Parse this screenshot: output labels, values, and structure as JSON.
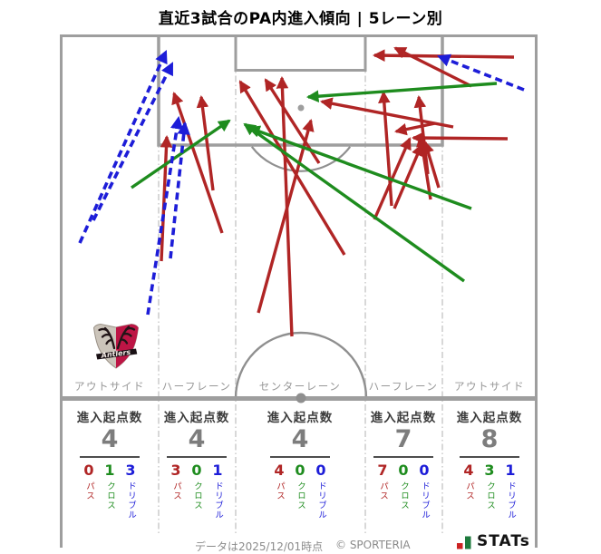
{
  "title": "直近3試合のPA内進入傾向 | 5レーン別",
  "stat_label": "進入起点数",
  "legend": {
    "pass": "パス",
    "cross": "クロス",
    "dribble": "ドリブル"
  },
  "colors": {
    "pass": "#b02525",
    "cross": "#1e8c1e",
    "dribble": "#1d1dd8",
    "pitch_line": "#9e9e9e",
    "lane_line": "#c2c2c2",
    "label_gray": "#979797"
  },
  "lanes": [
    {
      "label": "アウトサイド",
      "total": 4,
      "pass": 0,
      "cross": 1,
      "dribble": 3
    },
    {
      "label": "ハーフレーン",
      "total": 4,
      "pass": 3,
      "cross": 0,
      "dribble": 1
    },
    {
      "label": "センターレーン",
      "total": 4,
      "pass": 4,
      "cross": 0,
      "dribble": 0
    },
    {
      "label": "ハーフレーン",
      "total": 7,
      "pass": 7,
      "cross": 0,
      "dribble": 0
    },
    {
      "label": "アウトサイド",
      "total": 8,
      "pass": 4,
      "cross": 3,
      "dribble": 1
    }
  ],
  "footer": {
    "data_note": "データは2025/12/01時点",
    "copyright": "© SPORTERIA",
    "logo_text": "STATs"
  },
  "crest_text": "Antlers",
  "chart_data": {
    "type": "table",
    "title": "直近3試合のPA内進入傾向 | 5レーン別",
    "categories": [
      "アウトサイド",
      "ハーフレーン",
      "センターレーン",
      "ハーフレーン",
      "アウトサイド"
    ],
    "series": [
      {
        "name": "進入起点数",
        "values": [
          4,
          4,
          4,
          7,
          8
        ]
      },
      {
        "name": "パス",
        "values": [
          0,
          3,
          4,
          7,
          4
        ]
      },
      {
        "name": "クロス",
        "values": [
          1,
          0,
          0,
          0,
          3
        ]
      },
      {
        "name": "ドリブル",
        "values": [
          3,
          1,
          0,
          0,
          1
        ]
      }
    ],
    "arrows": [
      {
        "type": "pass",
        "from": [
          245,
          257
        ],
        "to": [
          192,
          103
        ]
      },
      {
        "type": "pass",
        "from": [
          178,
          288
        ],
        "to": [
          184,
          151
        ]
      },
      {
        "type": "pass",
        "from": [
          235,
          210
        ],
        "to": [
          222,
          107
        ]
      },
      {
        "type": "pass",
        "from": [
          322,
          371
        ],
        "to": [
          311,
          86
        ]
      },
      {
        "type": "pass",
        "from": [
          380,
          281
        ],
        "to": [
          265,
          90
        ]
      },
      {
        "type": "pass",
        "from": [
          352,
          180
        ],
        "to": [
          293,
          88
        ]
      },
      {
        "type": "pass",
        "from": [
          285,
          345
        ],
        "to": [
          343,
          133
        ]
      },
      {
        "type": "pass",
        "from": [
          432,
          227
        ],
        "to": [
          423,
          102
        ]
      },
      {
        "type": "pass",
        "from": [
          472,
          192
        ],
        "to": [
          462,
          107
        ]
      },
      {
        "type": "pass",
        "from": [
          413,
          242
        ],
        "to": [
          452,
          153
        ]
      },
      {
        "type": "pass",
        "from": [
          435,
          230
        ],
        "to": [
          465,
          160
        ]
      },
      {
        "type": "pass",
        "from": [
          475,
          220
        ],
        "to": [
          464,
          150
        ]
      },
      {
        "type": "pass",
        "from": [
          484,
          207
        ],
        "to": [
          469,
          157
        ]
      },
      {
        "type": "pass",
        "from": [
          480,
          136
        ],
        "to": [
          437,
          145
        ]
      },
      {
        "type": "pass",
        "from": [
          567,
          63
        ],
        "to": [
          413,
          61
        ]
      },
      {
        "type": "pass",
        "from": [
          560,
          153
        ],
        "to": [
          456,
          152
        ]
      },
      {
        "type": "pass",
        "from": [
          520,
          95
        ],
        "to": [
          436,
          53
        ]
      },
      {
        "type": "pass",
        "from": [
          500,
          140
        ],
        "to": [
          355,
          112
        ]
      },
      {
        "type": "cross",
        "from": [
          145,
          207
        ],
        "to": [
          253,
          133
        ]
      },
      {
        "type": "cross",
        "from": [
          548,
          92
        ],
        "to": [
          340,
          107
        ]
      },
      {
        "type": "cross",
        "from": [
          512,
          310
        ],
        "to": [
          270,
          137
        ]
      },
      {
        "type": "cross",
        "from": [
          520,
          230
        ],
        "to": [
          275,
          141
        ]
      },
      {
        "type": "dribble",
        "from": [
          88,
          268
        ],
        "to": [
          183,
          57
        ]
      },
      {
        "type": "dribble",
        "from": [
          103,
          243
        ],
        "to": [
          190,
          70
        ]
      },
      {
        "type": "dribble",
        "from": [
          163,
          347
        ],
        "to": [
          197,
          130
        ]
      },
      {
        "type": "dribble",
        "from": [
          188,
          285
        ],
        "to": [
          204,
          136
        ]
      },
      {
        "type": "dribble",
        "from": [
          578,
          99
        ],
        "to": [
          484,
          62
        ]
      }
    ]
  }
}
